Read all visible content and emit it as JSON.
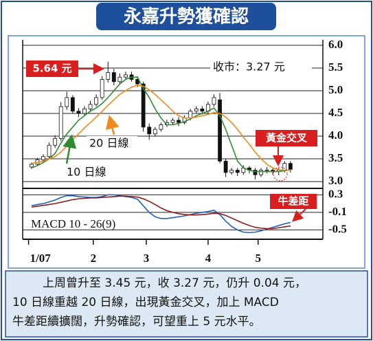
{
  "header": {
    "title": "永嘉升勢獲確認"
  },
  "chart_data": [
    {
      "type": "candlestick",
      "x": [
        1,
        3,
        5,
        7,
        9,
        11,
        13,
        15,
        17,
        19,
        21,
        23,
        25,
        27,
        29,
        31,
        33,
        35,
        37,
        39,
        41,
        43,
        45,
        47,
        49,
        51,
        53,
        55,
        57,
        59,
        61,
        63,
        65,
        67,
        69,
        71,
        73,
        75,
        77,
        79,
        81,
        83,
        85,
        87,
        89
      ],
      "open": [
        3.32,
        3.38,
        3.48,
        3.55,
        3.8,
        3.95,
        4.65,
        4.85,
        4.55,
        4.5,
        4.6,
        4.7,
        4.85,
        5.25,
        5.4,
        5.2,
        5.3,
        5.35,
        5.25,
        5.15,
        4.2,
        4.05,
        4.15,
        4.25,
        4.3,
        4.35,
        4.3,
        4.4,
        4.55,
        4.6,
        4.55,
        4.7,
        4.8,
        3.45,
        3.2,
        3.25,
        3.2,
        3.3,
        3.25,
        3.15,
        3.25,
        3.25,
        3.22,
        3.25,
        3.4
      ],
      "high": [
        3.42,
        3.52,
        3.6,
        3.86,
        4.02,
        4.75,
        4.98,
        4.9,
        4.62,
        4.66,
        4.78,
        4.92,
        5.32,
        5.64,
        5.48,
        5.38,
        5.42,
        5.42,
        5.32,
        5.2,
        4.28,
        4.2,
        4.3,
        4.36,
        4.4,
        4.42,
        4.46,
        4.6,
        4.66,
        4.66,
        4.76,
        4.92,
        4.95,
        3.5,
        3.3,
        3.3,
        3.36,
        3.34,
        3.3,
        3.3,
        3.32,
        3.3,
        3.3,
        3.45,
        3.45
      ],
      "low": [
        3.28,
        3.34,
        3.42,
        3.5,
        3.74,
        3.9,
        4.58,
        4.5,
        4.42,
        4.44,
        4.55,
        4.65,
        4.8,
        5.18,
        5.12,
        5.15,
        5.24,
        5.2,
        5.08,
        4.1,
        3.92,
        4.0,
        4.1,
        4.2,
        4.25,
        4.22,
        4.26,
        4.35,
        4.5,
        4.48,
        4.5,
        4.65,
        3.4,
        3.1,
        3.15,
        3.12,
        3.15,
        3.18,
        3.05,
        3.1,
        3.18,
        3.15,
        3.14,
        3.2,
        3.2
      ],
      "close": [
        3.38,
        3.48,
        3.55,
        3.8,
        3.95,
        4.65,
        4.85,
        4.55,
        4.5,
        4.6,
        4.7,
        4.85,
        5.25,
        5.4,
        5.2,
        5.3,
        5.35,
        5.25,
        5.15,
        4.2,
        4.05,
        4.15,
        4.25,
        4.3,
        4.35,
        4.3,
        4.4,
        4.55,
        4.6,
        4.55,
        4.7,
        4.85,
        3.45,
        3.2,
        3.25,
        3.2,
        3.3,
        3.25,
        3.15,
        3.25,
        3.25,
        3.22,
        3.25,
        3.4,
        3.27
      ],
      "series": [
        {
          "name": "10 日線",
          "color": "#2e8b2e",
          "values": [
            3.3,
            3.35,
            3.42,
            3.5,
            3.62,
            3.85,
            4.05,
            4.2,
            4.35,
            4.45,
            4.55,
            4.62,
            4.72,
            4.85,
            5.0,
            5.15,
            5.25,
            5.3,
            5.3,
            5.05,
            4.85,
            4.6,
            4.4,
            4.25,
            4.25,
            4.28,
            4.32,
            4.38,
            4.45,
            4.5,
            4.55,
            4.62,
            4.45,
            4.15,
            3.8,
            3.45,
            3.3,
            3.25,
            3.22,
            3.22,
            3.22,
            3.22,
            3.22,
            3.24,
            3.26
          ]
        },
        {
          "name": "20 日線",
          "color": "#f08a1c",
          "values": [
            3.4,
            3.42,
            3.45,
            3.5,
            3.55,
            3.65,
            3.78,
            3.92,
            4.05,
            4.18,
            4.3,
            4.42,
            4.55,
            4.68,
            4.8,
            4.92,
            5.0,
            5.08,
            5.12,
            5.1,
            5.02,
            4.92,
            4.8,
            4.68,
            4.55,
            4.45,
            4.4,
            4.4,
            4.42,
            4.45,
            4.48,
            4.52,
            4.5,
            4.42,
            4.3,
            4.15,
            3.98,
            3.82,
            3.65,
            3.5,
            3.38,
            3.3,
            3.26,
            3.25,
            3.25
          ]
        }
      ],
      "xlim": [
        -2,
        100
      ],
      "ylim": [
        2.88,
        6.12
      ],
      "yticks": [
        {
          "value": 6,
          "label": "6.0"
        },
        {
          "value": 5.5,
          "label": "5.5"
        },
        {
          "value": 5,
          "label": "5.0"
        },
        {
          "value": 4.5,
          "label": "4.5"
        },
        {
          "value": 4,
          "label": "4.0"
        },
        {
          "value": 3.5,
          "label": "3.5"
        },
        {
          "value": 3,
          "label": "3.0"
        }
      ],
      "grid": true,
      "annotations": {
        "high": "5.64 元",
        "close": "收市：3.27 元",
        "cross": "黃金交叉"
      }
    },
    {
      "type": "line",
      "title": "MACD 10 - 26(9)",
      "annotation": "牛差距",
      "x": [
        1,
        3,
        5,
        7,
        9,
        11,
        13,
        15,
        17,
        19,
        21,
        23,
        25,
        27,
        29,
        31,
        33,
        35,
        37,
        39,
        41,
        43,
        45,
        47,
        49,
        51,
        53,
        55,
        57,
        59,
        61,
        63,
        65,
        67,
        69,
        71,
        73,
        75,
        77,
        79,
        81,
        83,
        85,
        87,
        89
      ],
      "series": [
        {
          "color": "#1f5fbf",
          "values": [
            0.05,
            0.08,
            0.1,
            0.14,
            0.18,
            0.24,
            0.28,
            0.28,
            0.26,
            0.25,
            0.24,
            0.24,
            0.26,
            0.3,
            0.3,
            0.28,
            0.26,
            0.24,
            0.2,
            0.05,
            -0.1,
            -0.2,
            -0.24,
            -0.24,
            -0.22,
            -0.2,
            -0.18,
            -0.15,
            -0.12,
            -0.1,
            -0.08,
            -0.05,
            -0.15,
            -0.3,
            -0.42,
            -0.5,
            -0.55,
            -0.56,
            -0.55,
            -0.52,
            -0.48,
            -0.44,
            -0.4,
            -0.36,
            -0.33
          ]
        },
        {
          "color": "#8b1a1a",
          "values": [
            0.02,
            0.04,
            0.06,
            0.08,
            0.1,
            0.13,
            0.16,
            0.19,
            0.21,
            0.22,
            0.23,
            0.23,
            0.24,
            0.25,
            0.26,
            0.27,
            0.27,
            0.26,
            0.25,
            0.21,
            0.15,
            0.08,
            0.0,
            -0.06,
            -0.1,
            -0.13,
            -0.15,
            -0.16,
            -0.16,
            -0.15,
            -0.14,
            -0.12,
            -0.13,
            -0.17,
            -0.23,
            -0.29,
            -0.35,
            -0.4,
            -0.44,
            -0.46,
            -0.47,
            -0.47,
            -0.45,
            -0.43,
            -0.41
          ]
        }
      ],
      "xlim": [
        -2,
        100
      ],
      "ylim": [
        -0.65,
        0.4
      ],
      "yticks": [
        0.3,
        -0.1,
        -0.5
      ],
      "xticks": [
        {
          "value": 0,
          "label": "1/07"
        },
        {
          "value": 22,
          "label": "2"
        },
        {
          "value": 40,
          "label": "3"
        },
        {
          "value": 61,
          "label": "4"
        },
        {
          "value": 78,
          "label": "5"
        }
      ],
      "grid": true
    }
  ],
  "caption": {
    "lines": [
      "上周曾升至 3.45 元，收 3.27 元，仍升 0.04 元，",
      "10 日線重越 20 日線，出現黃金交叉，加上 MACD",
      "牛差距續擴闊，升勢確認，可望重上 5 元水平。"
    ]
  }
}
